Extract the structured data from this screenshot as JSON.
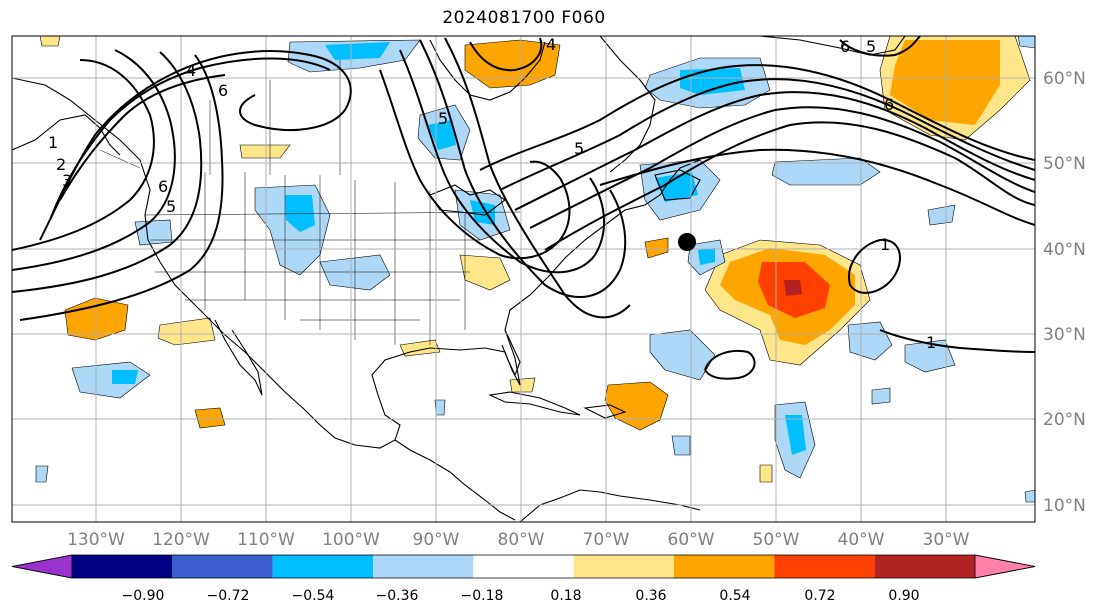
{
  "title": "2024081700 F060",
  "map": {
    "lon_ticks": [
      "130°W",
      "120°W",
      "110°W",
      "100°W",
      "90°W",
      "80°W",
      "70°W",
      "60°W",
      "50°W",
      "40°W",
      "30°W"
    ],
    "lat_ticks": [
      "60°N",
      "50°N",
      "40°N",
      "30°N",
      "20°N",
      "10°N"
    ],
    "contour_labels": [
      "6",
      "6",
      "5",
      "4",
      "3",
      "2",
      "1",
      "6",
      "5",
      "6",
      "5",
      "4",
      "5",
      "1",
      "1"
    ],
    "marker": "storm-center"
  },
  "colorbar": {
    "ticks": [
      "−0.90",
      "−0.72",
      "−0.54",
      "−0.36",
      "−0.18",
      "0.18",
      "0.36",
      "0.54",
      "0.72",
      "0.90"
    ],
    "colors": [
      "#9933cc",
      "#000080",
      "#3a5fcd",
      "#00bfff",
      "#add8f7",
      "#ffffff",
      "#ffe68a",
      "#ffa500",
      "#ff4000",
      "#b22222",
      "#ff80a8"
    ]
  },
  "colors": {
    "land_outline": "#000000",
    "grid": "#b0b0b0",
    "contour": "#000000"
  }
}
